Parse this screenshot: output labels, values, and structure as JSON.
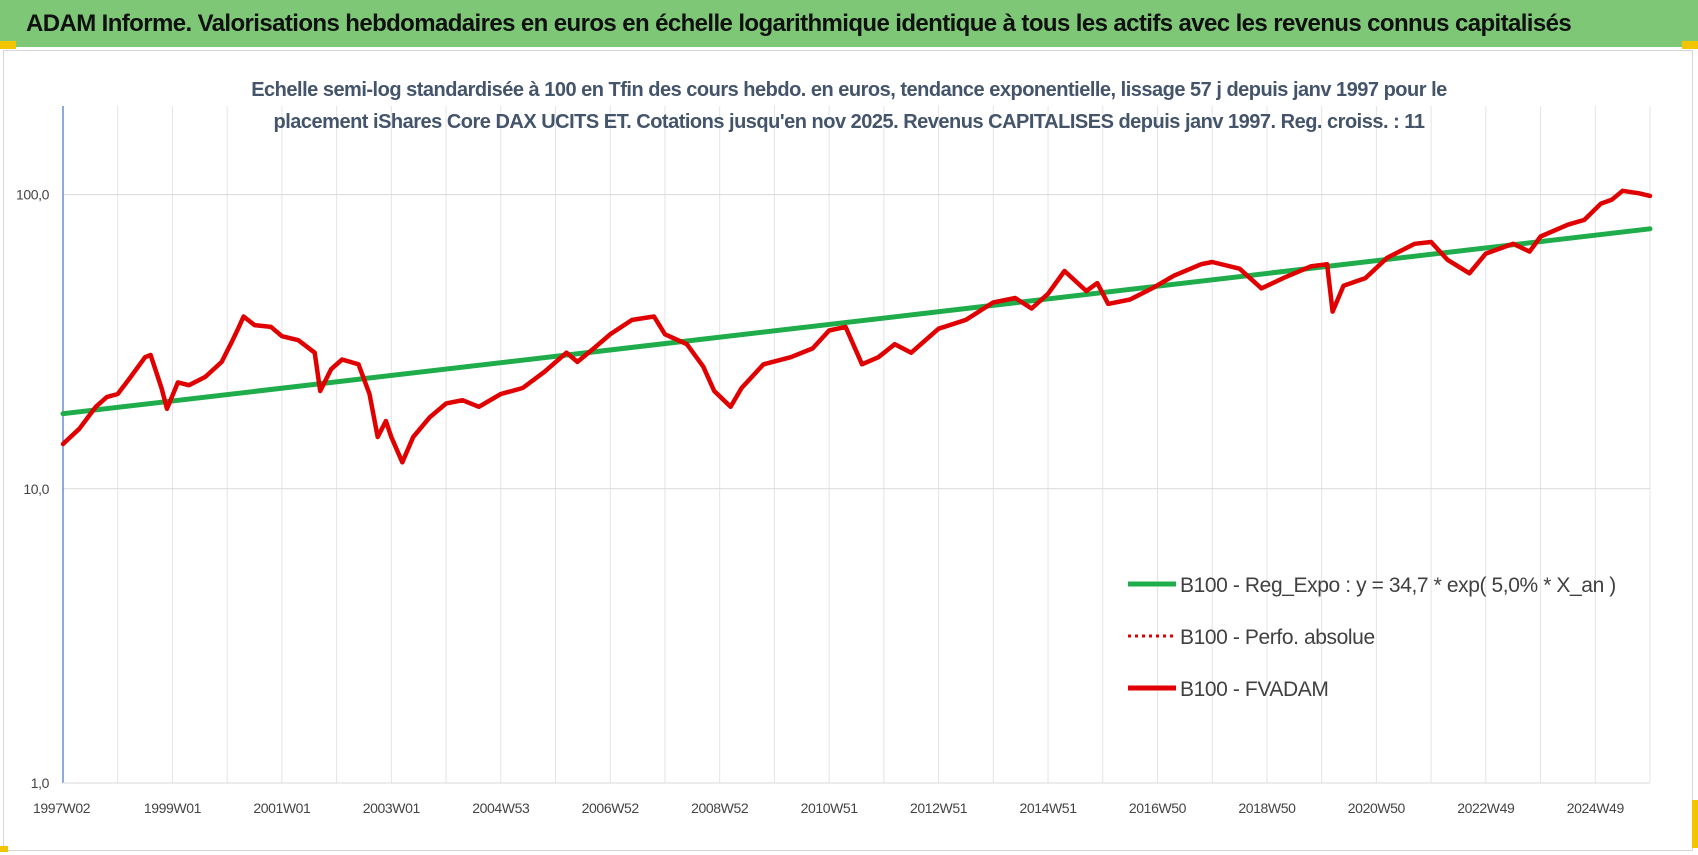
{
  "banner": {
    "title": "ADAM Informe. Valorisations hebdomadaires en euros en échelle logarithmique identique à tous les actifs avec les revenus connus capitalisés",
    "background": "#7dc777"
  },
  "chart_data": {
    "type": "line",
    "title_lines": [
      "Echelle semi-log standardisée à 100 en Tfin des cours hebdo. en euros, tendance exponentielle, lissage 57 j depuis janv 1997 pour le",
      "placement iShares Core DAX UCITS ET. Cotations jusqu'en nov 2025. Revenus CAPITALISES depuis janv 1997. Reg. croiss. : 11"
    ],
    "y_scale": "log",
    "ylim": [
      1,
      200
    ],
    "xlim": [
      1997.0,
      2026.0
    ],
    "y_ticks": [
      {
        "value": 1,
        "label": "1,0"
      },
      {
        "value": 10,
        "label": "10,0"
      },
      {
        "value": 100,
        "label": "100,0"
      }
    ],
    "x_ticks": [
      {
        "value": 1997.0,
        "label": "1997W02"
      },
      {
        "value": 1999.0,
        "label": "1999W01"
      },
      {
        "value": 2001.0,
        "label": "2001W01"
      },
      {
        "value": 2003.0,
        "label": "2003W01"
      },
      {
        "value": 2005.0,
        "label": "2004W53"
      },
      {
        "value": 2007.0,
        "label": "2006W52"
      },
      {
        "value": 2009.0,
        "label": "2008W52"
      },
      {
        "value": 2011.0,
        "label": "2010W51"
      },
      {
        "value": 2013.0,
        "label": "2012W51"
      },
      {
        "value": 2015.0,
        "label": "2014W51"
      },
      {
        "value": 2017.0,
        "label": "2016W50"
      },
      {
        "value": 2019.0,
        "label": "2018W50"
      },
      {
        "value": 2021.0,
        "label": "2020W50"
      },
      {
        "value": 2023.0,
        "label": "2022W49"
      },
      {
        "value": 2025.0,
        "label": "2024W49"
      }
    ],
    "vertical_grid": true,
    "horizontal_grid": true,
    "legend_position": "lower-right",
    "series": [
      {
        "name": "B100 - Reg_Expo : y = 34,7 * exp( 5,0% *  X_an )",
        "color": "#1fad4b",
        "style": "solid",
        "points": [
          [
            1997.0,
            18.0
          ],
          [
            2026.0,
            76.5
          ]
        ]
      },
      {
        "name": "B100 - Perfo. absolue",
        "color": "#e00000",
        "style": "dotted",
        "points": []
      },
      {
        "name": "B100 - FVADAM",
        "color": "#e00000",
        "style": "solid",
        "points": [
          [
            1997.0,
            14.2
          ],
          [
            1997.3,
            16.0
          ],
          [
            1997.6,
            19.0
          ],
          [
            1997.8,
            20.5
          ],
          [
            1998.0,
            21.0
          ],
          [
            1998.2,
            23.5
          ],
          [
            1998.5,
            28.0
          ],
          [
            1998.6,
            28.5
          ],
          [
            1998.8,
            22.0
          ],
          [
            1998.9,
            18.7
          ],
          [
            1999.1,
            23.0
          ],
          [
            1999.3,
            22.5
          ],
          [
            1999.6,
            24.0
          ],
          [
            1999.9,
            27.0
          ],
          [
            2000.1,
            32.0
          ],
          [
            2000.2,
            35.0
          ],
          [
            2000.3,
            38.5
          ],
          [
            2000.5,
            36.0
          ],
          [
            2000.8,
            35.5
          ],
          [
            2001.0,
            33.0
          ],
          [
            2001.3,
            32.0
          ],
          [
            2001.6,
            29.0
          ],
          [
            2001.7,
            21.5
          ],
          [
            2001.9,
            25.5
          ],
          [
            2002.1,
            27.5
          ],
          [
            2002.4,
            26.5
          ],
          [
            2002.6,
            21.0
          ],
          [
            2002.75,
            15.0
          ],
          [
            2002.9,
            17.0
          ],
          [
            2003.0,
            15.0
          ],
          [
            2003.2,
            12.3
          ],
          [
            2003.4,
            15.0
          ],
          [
            2003.7,
            17.5
          ],
          [
            2004.0,
            19.5
          ],
          [
            2004.3,
            20.0
          ],
          [
            2004.6,
            19.0
          ],
          [
            2005.0,
            21.0
          ],
          [
            2005.4,
            22.0
          ],
          [
            2005.8,
            25.0
          ],
          [
            2006.2,
            29.0
          ],
          [
            2006.4,
            27.0
          ],
          [
            2006.7,
            30.0
          ],
          [
            2007.0,
            33.5
          ],
          [
            2007.4,
            37.5
          ],
          [
            2007.8,
            38.5
          ],
          [
            2008.0,
            33.5
          ],
          [
            2008.4,
            31.0
          ],
          [
            2008.7,
            26.0
          ],
          [
            2008.9,
            21.5
          ],
          [
            2009.2,
            19.0
          ],
          [
            2009.4,
            22.0
          ],
          [
            2009.8,
            26.5
          ],
          [
            2010.3,
            28.0
          ],
          [
            2010.7,
            30.0
          ],
          [
            2011.0,
            34.5
          ],
          [
            2011.3,
            35.5
          ],
          [
            2011.6,
            26.5
          ],
          [
            2011.9,
            28.0
          ],
          [
            2012.2,
            31.0
          ],
          [
            2012.5,
            29.0
          ],
          [
            2013.0,
            35.0
          ],
          [
            2013.5,
            37.5
          ],
          [
            2014.0,
            43.0
          ],
          [
            2014.4,
            44.5
          ],
          [
            2014.7,
            41.0
          ],
          [
            2015.0,
            46.0
          ],
          [
            2015.3,
            55.0
          ],
          [
            2015.7,
            47.0
          ],
          [
            2015.9,
            50.0
          ],
          [
            2016.1,
            42.5
          ],
          [
            2016.5,
            44.0
          ],
          [
            2016.9,
            48.0
          ],
          [
            2017.3,
            53.0
          ],
          [
            2017.8,
            58.0
          ],
          [
            2018.0,
            59.0
          ],
          [
            2018.5,
            56.0
          ],
          [
            2018.9,
            48.0
          ],
          [
            2019.3,
            52.0
          ],
          [
            2019.8,
            57.0
          ],
          [
            2020.1,
            58.0
          ],
          [
            2020.2,
            40.0
          ],
          [
            2020.4,
            49.0
          ],
          [
            2020.8,
            52.0
          ],
          [
            2021.2,
            61.0
          ],
          [
            2021.7,
            68.0
          ],
          [
            2022.0,
            69.0
          ],
          [
            2022.3,
            60.0
          ],
          [
            2022.7,
            54.0
          ],
          [
            2023.0,
            63.0
          ],
          [
            2023.5,
            68.0
          ],
          [
            2023.8,
            64.0
          ],
          [
            2024.0,
            72.0
          ],
          [
            2024.5,
            79.0
          ],
          [
            2024.8,
            82.0
          ],
          [
            2025.1,
            93.0
          ],
          [
            2025.3,
            96.0
          ],
          [
            2025.5,
            103.0
          ],
          [
            2025.8,
            101.0
          ],
          [
            2026.0,
            99.0
          ]
        ]
      }
    ]
  }
}
